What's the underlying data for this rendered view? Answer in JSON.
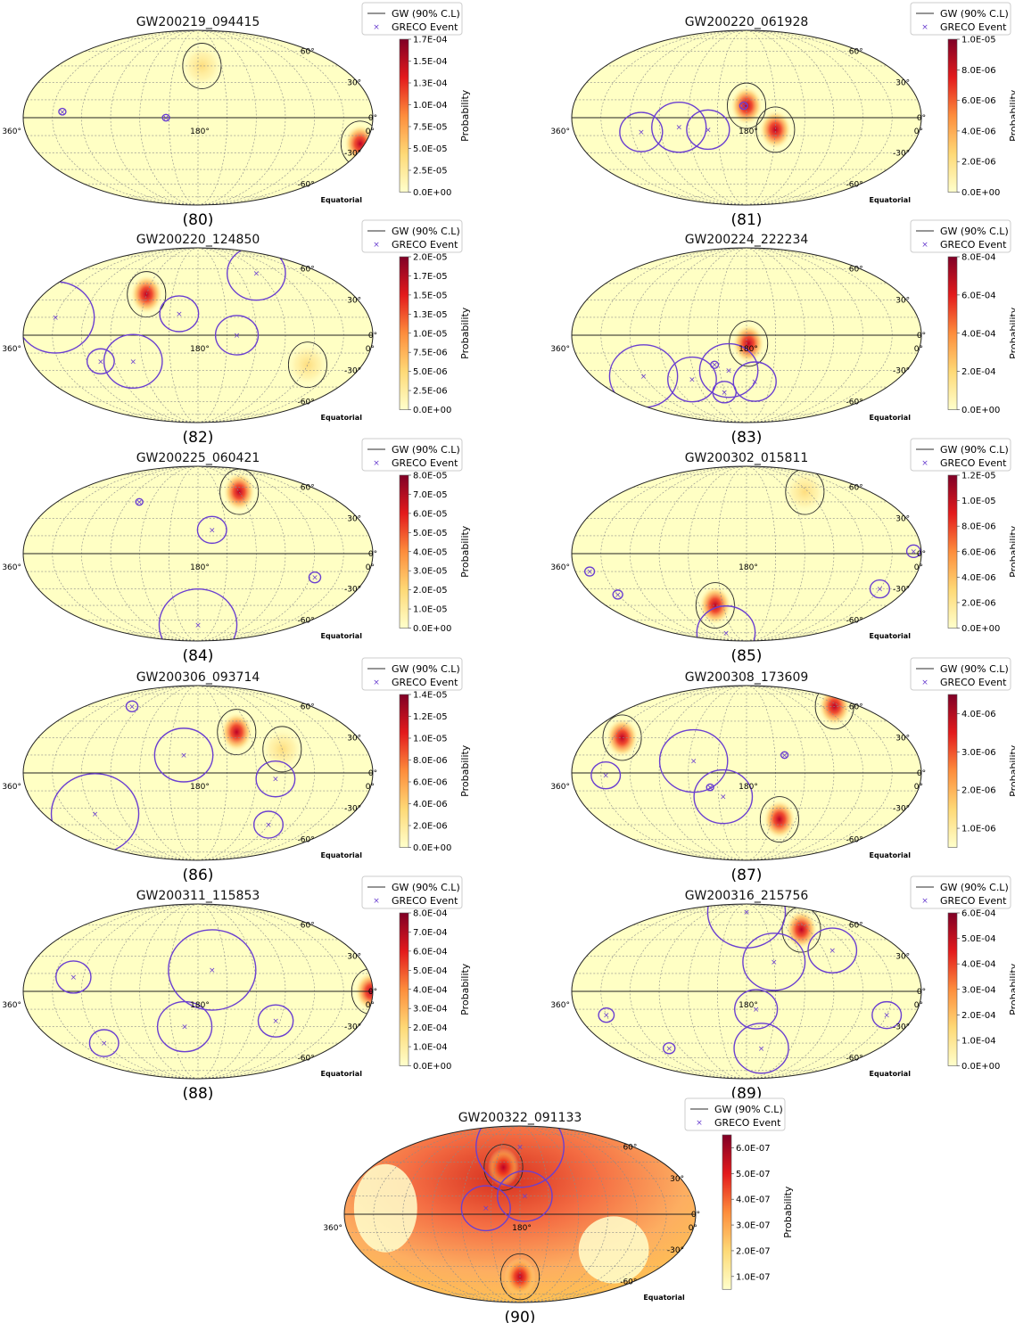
{
  "figure": {
    "legend_gw": "GW (90% C.L)",
    "legend_greco": "GRECO Event",
    "colorbar_label": "Probability",
    "frame_label": "Equatorial",
    "ra_labels": [
      "360°",
      "180°",
      "0°"
    ],
    "dec_labels": [
      "60°",
      "30°",
      "0°",
      "-30°",
      "-60°"
    ],
    "colors": {
      "gw_contour": "#2b2b2b",
      "greco": "#6a3fd0",
      "map_background": "#ffffc4",
      "hot_low": "#ffffcc",
      "hot_mid": "#fd8d3c",
      "hot_high": "#800026"
    }
  },
  "chart_data": [
    {
      "type": "heatmap",
      "projection": "mollweide",
      "panel_label": "(80)",
      "title": "GW200219_094415",
      "colorbar_ticks": [
        "0.0E+00",
        "2.5E-05",
        "5.0E-05",
        "7.5E-05",
        "1.0E-04",
        "1.3E-04",
        "1.5E-04",
        "1.7E-04"
      ],
      "gw_regions": [
        {
          "ra": 5,
          "dec": -22,
          "peak": true
        },
        {
          "ra": 175,
          "dec": 45,
          "peak": false
        }
      ],
      "greco_events": [
        {
          "ra": 320,
          "dec": 5,
          "radius_deg": 3
        },
        {
          "ra": 213,
          "dec": 0,
          "radius_deg": 3
        }
      ]
    },
    {
      "type": "heatmap",
      "projection": "mollweide",
      "panel_label": "(81)",
      "title": "GW200220_061928",
      "colorbar_ticks": [
        "0.0E+00",
        "2.0E-06",
        "4.0E-06",
        "6.0E-06",
        "8.0E-06",
        "1.0E-05"
      ],
      "gw_regions": [
        {
          "ra": 180,
          "dec": 10,
          "peak": true
        },
        {
          "ra": 150,
          "dec": -10,
          "peak": true
        }
      ],
      "greco_events": [
        {
          "ra": 290,
          "dec": -12,
          "radius_deg": 22
        },
        {
          "ra": 250,
          "dec": -8,
          "radius_deg": 28
        },
        {
          "ra": 220,
          "dec": -10,
          "radius_deg": 22
        },
        {
          "ra": 183,
          "dec": 10,
          "radius_deg": 4
        }
      ]
    },
    {
      "type": "heatmap",
      "projection": "mollweide",
      "panel_label": "(82)",
      "title": "GW200220_124850",
      "colorbar_ticks": [
        "0.0E+00",
        "2.5E-06",
        "5.0E-06",
        "7.5E-06",
        "1.0E-05",
        "1.3E-05",
        "1.5E-05",
        "1.7E-05",
        "2.0E-05"
      ],
      "gw_regions": [
        {
          "ra": 240,
          "dec": 35,
          "peak": true
        },
        {
          "ra": 60,
          "dec": -25,
          "peak": false
        }
      ],
      "greco_events": [
        {
          "ra": 330,
          "dec": 15,
          "radius_deg": 40
        },
        {
          "ra": 285,
          "dec": -22,
          "radius_deg": 14
        },
        {
          "ra": 250,
          "dec": -22,
          "radius_deg": 30
        },
        {
          "ra": 200,
          "dec": 18,
          "radius_deg": 20
        },
        {
          "ra": 140,
          "dec": 0,
          "radius_deg": 22
        },
        {
          "ra": 95,
          "dec": 55,
          "radius_deg": 30
        }
      ]
    },
    {
      "type": "heatmap",
      "projection": "mollweide",
      "panel_label": "(83)",
      "title": "GW200224_222234",
      "colorbar_ticks": [
        "0.0E+00",
        "2.0E-04",
        "4.0E-04",
        "6.0E-04",
        "8.0E-04"
      ],
      "gw_regions": [
        {
          "ra": 178,
          "dec": -7,
          "peak": true
        }
      ],
      "greco_events": [
        {
          "ra": 300,
          "dec": -35,
          "radius_deg": 35
        },
        {
          "ra": 245,
          "dec": -38,
          "radius_deg": 25
        },
        {
          "ra": 215,
          "dec": -25,
          "radius_deg": 4
        },
        {
          "ra": 210,
          "dec": -50,
          "radius_deg": 12
        },
        {
          "ra": 200,
          "dec": -30,
          "radius_deg": 30
        },
        {
          "ra": 170,
          "dec": -40,
          "radius_deg": 22
        }
      ]
    },
    {
      "type": "heatmap",
      "projection": "mollweide",
      "panel_label": "(84)",
      "title": "GW200225_060421",
      "colorbar_ticks": [
        "0.0E+00",
        "1.0E-05",
        "2.0E-05",
        "3.0E-05",
        "4.0E-05",
        "5.0E-05",
        "6.0E-05",
        "7.0E-05",
        "8.0E-05"
      ],
      "gw_regions": [
        {
          "ra": 120,
          "dec": 55,
          "peak": true
        }
      ],
      "greco_events": [
        {
          "ra": 255,
          "dec": 45,
          "radius_deg": 2
        },
        {
          "ra": 165,
          "dec": 20,
          "radius_deg": 15
        },
        {
          "ra": 55,
          "dec": -20,
          "radius_deg": 6
        },
        {
          "ra": 180,
          "dec": -65,
          "radius_deg": 40
        }
      ]
    },
    {
      "type": "heatmap",
      "projection": "mollweide",
      "panel_label": "(85)",
      "title": "GW200302_015811",
      "colorbar_ticks": [
        "0.0E+00",
        "2.0E-06",
        "4.0E-06",
        "6.0E-06",
        "8.0E-06",
        "1.0E-05",
        "1.2E-05"
      ],
      "gw_regions": [
        {
          "ra": 220,
          "dec": -45,
          "peak": true
        },
        {
          "ra": 95,
          "dec": 55,
          "peak": false
        }
      ],
      "greco_events": [
        {
          "ra": 345,
          "dec": -15,
          "radius_deg": 5
        },
        {
          "ra": 330,
          "dec": -35,
          "radius_deg": 5
        },
        {
          "ra": 8,
          "dec": 2,
          "radius_deg": 7
        },
        {
          "ra": 30,
          "dec": -30,
          "radius_deg": 10
        },
        {
          "ra": 230,
          "dec": -75,
          "radius_deg": 30
        }
      ]
    },
    {
      "type": "heatmap",
      "projection": "mollweide",
      "panel_label": "(86)",
      "title": "GW200306_093714",
      "colorbar_ticks": [
        "0.0E+00",
        "2.0E-06",
        "4.0E-06",
        "6.0E-06",
        "8.0E-06",
        "1.0E-05",
        "1.2E-05",
        "1.4E-05"
      ],
      "gw_regions": [
        {
          "ra": 135,
          "dec": 35,
          "peak": true
        },
        {
          "ra": 90,
          "dec": 20,
          "peak": false
        }
      ],
      "greco_events": [
        {
          "ra": 285,
          "dec": 60,
          "radius_deg": 6
        },
        {
          "ra": 195,
          "dec": 15,
          "radius_deg": 30
        },
        {
          "ra": 100,
          "dec": -5,
          "radius_deg": 20
        },
        {
          "ra": 300,
          "dec": -35,
          "radius_deg": 45
        },
        {
          "ra": 90,
          "dec": -45,
          "radius_deg": 15
        }
      ]
    },
    {
      "type": "heatmap",
      "projection": "mollweide",
      "panel_label": "(87)",
      "title": "GW200308_173609",
      "colorbar_ticks": [
        "1.0E-06",
        "2.0E-06",
        "3.0E-06",
        "4.0E-06"
      ],
      "gw_regions": [
        {
          "ra": 320,
          "dec": 30,
          "peak": true
        },
        {
          "ra": 140,
          "dec": -40,
          "peak": true
        },
        {
          "ra": 40,
          "dec": 60,
          "peak": true
        }
      ],
      "greco_events": [
        {
          "ra": 325,
          "dec": -2,
          "radius_deg": 15
        },
        {
          "ra": 235,
          "dec": 10,
          "radius_deg": 35
        },
        {
          "ra": 205,
          "dec": -20,
          "radius_deg": 30
        },
        {
          "ra": 218,
          "dec": -12,
          "radius_deg": 3
        },
        {
          "ra": 140,
          "dec": 15,
          "radius_deg": 3
        }
      ]
    },
    {
      "type": "heatmap",
      "projection": "mollweide",
      "panel_label": "(88)",
      "title": "GW200311_115853",
      "colorbar_ticks": [
        "0.0E+00",
        "1.0E-04",
        "2.0E-04",
        "3.0E-04",
        "4.0E-04",
        "5.0E-04",
        "6.0E-04",
        "7.0E-04",
        "8.0E-04"
      ],
      "gw_regions": [
        {
          "ra": 2,
          "dec": 0,
          "peak": true
        }
      ],
      "greco_events": [
        {
          "ra": 310,
          "dec": 12,
          "radius_deg": 18
        },
        {
          "ra": 300,
          "dec": -45,
          "radius_deg": 15
        },
        {
          "ra": 165,
          "dec": 18,
          "radius_deg": 45
        },
        {
          "ra": 195,
          "dec": -30,
          "radius_deg": 28
        },
        {
          "ra": 95,
          "dec": -25,
          "radius_deg": 18
        }
      ]
    },
    {
      "type": "heatmap",
      "projection": "mollweide",
      "panel_label": "(89)",
      "title": "GW200316_215756",
      "colorbar_ticks": [
        "0.0E+00",
        "1.0E-04",
        "2.0E-04",
        "3.0E-04",
        "4.0E-04",
        "5.0E-04",
        "6.0E-04"
      ],
      "gw_regions": [
        {
          "ra": 100,
          "dec": 55,
          "peak": true
        }
      ],
      "greco_events": [
        {
          "ra": 330,
          "dec": -20,
          "radius_deg": 8
        },
        {
          "ra": 285,
          "dec": -50,
          "radius_deg": 6
        },
        {
          "ra": 150,
          "dec": 25,
          "radius_deg": 32
        },
        {
          "ra": 170,
          "dec": -15,
          "radius_deg": 22
        },
        {
          "ra": 160,
          "dec": -50,
          "radius_deg": 28
        },
        {
          "ra": 80,
          "dec": 35,
          "radius_deg": 25
        },
        {
          "ra": 30,
          "dec": -20,
          "radius_deg": 15
        },
        {
          "ra": 180,
          "dec": 75,
          "radius_deg": 40
        }
      ]
    },
    {
      "type": "heatmap",
      "projection": "mollweide",
      "panel_label": "(90)",
      "title": "GW200322_091133",
      "colorbar_ticks": [
        "1.0E-07",
        "2.0E-07",
        "3.0E-07",
        "4.0E-07",
        "5.0E-07",
        "6.0E-07"
      ],
      "saturated": true,
      "gw_regions": [
        {
          "ra": 200,
          "dec": 40,
          "peak": true
        },
        {
          "ra": 180,
          "dec": -55,
          "peak": true
        }
      ],
      "greco_events": [
        {
          "ra": 215,
          "dec": 5,
          "radius_deg": 25
        },
        {
          "ra": 175,
          "dec": 15,
          "radius_deg": 28
        },
        {
          "ra": 180,
          "dec": 60,
          "radius_deg": 45
        }
      ]
    }
  ]
}
